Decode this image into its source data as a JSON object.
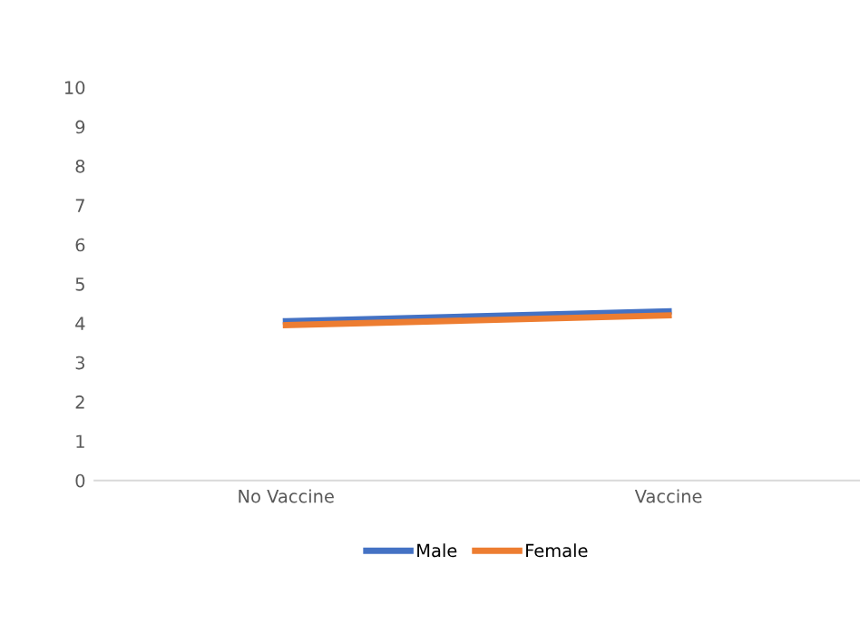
{
  "chart_data": {
    "type": "line",
    "categories": [
      "No Vaccine",
      "Vaccine"
    ],
    "series": [
      {
        "name": "Male",
        "color": "#4472c4",
        "values": [
          4.05,
          4.3
        ]
      },
      {
        "name": "Female",
        "color": "#ed7d31",
        "values": [
          3.95,
          4.2
        ]
      }
    ],
    "ylim": [
      0,
      10
    ],
    "yticks": [
      0,
      1,
      2,
      3,
      4,
      5,
      6,
      7,
      8,
      9,
      10
    ],
    "grid": false,
    "legend": "bottom",
    "marker": "none",
    "line_style": "solid"
  }
}
